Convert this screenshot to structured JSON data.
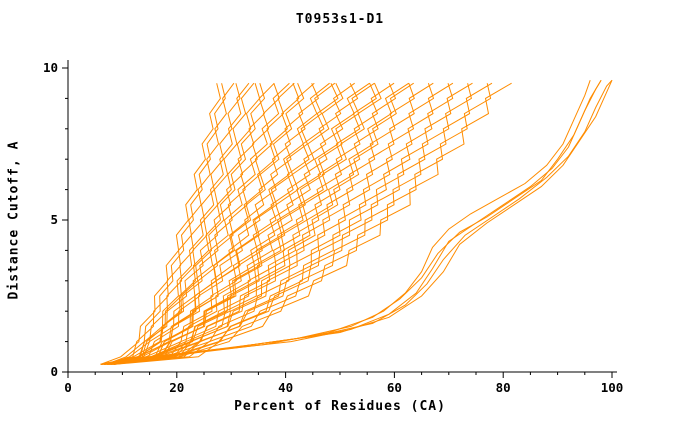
{
  "chart_data": {
    "type": "line",
    "title": "T0953s1-D1",
    "xlabel": "Percent of Residues (CA)",
    "ylabel": "Distance Cutoff, A",
    "xlim": [
      0,
      100
    ],
    "ylim": [
      0,
      10
    ],
    "x_ticks": [
      0,
      20,
      40,
      60,
      80,
      100
    ],
    "x_minor_ticks_step": 5,
    "y_ticks": [
      0,
      5,
      10
    ],
    "y_minor_ticks_step": 1,
    "line_color": "#ff8c00",
    "axis_color": "#000000",
    "background": "#ffffff",
    "legend": "none",
    "grid": false,
    "band_series": [
      [
        6,
        28
      ],
      [
        6.6,
        29.8
      ],
      [
        7.2,
        31.6
      ],
      [
        7.8,
        33.4
      ],
      [
        8.4,
        35.2
      ],
      [
        6,
        37
      ],
      [
        6.6,
        38.8
      ],
      [
        7.2,
        40.6
      ],
      [
        7.8,
        42.4
      ],
      [
        8.4,
        44.2
      ],
      [
        6,
        46
      ],
      [
        6.6,
        47.8
      ],
      [
        7.2,
        49.6
      ],
      [
        7.8,
        51.4
      ],
      [
        8.4,
        53.2
      ],
      [
        6,
        55
      ],
      [
        6.6,
        56.8
      ],
      [
        7.2,
        58.6
      ],
      [
        7.8,
        60.4
      ],
      [
        8.4,
        62.2
      ],
      [
        6,
        64
      ],
      [
        6.6,
        65.8
      ],
      [
        7.2,
        67.6
      ],
      [
        7.8,
        69.4
      ],
      [
        8.4,
        71.2
      ],
      [
        6,
        73
      ],
      [
        6.6,
        74.8
      ],
      [
        7.2,
        76.6
      ],
      [
        7.8,
        78.4
      ],
      [
        8.4,
        80.2
      ],
      [
        7,
        28.9
      ],
      [
        7.6,
        32.5
      ],
      [
        8.2,
        36.1
      ],
      [
        6.3,
        39.7
      ],
      [
        6.9,
        43.3
      ],
      [
        7.5,
        46.9
      ],
      [
        8.1,
        50.5
      ],
      [
        6.2,
        54.1
      ],
      [
        6.8,
        57.7
      ],
      [
        7.4,
        61.3
      ]
    ],
    "outlier_series": [
      [
        [
          7,
          0.3
        ],
        [
          18,
          0.5
        ],
        [
          30,
          0.8
        ],
        [
          42,
          1.1
        ],
        [
          52,
          1.5
        ],
        [
          58,
          2.0
        ],
        [
          62,
          2.6
        ],
        [
          65,
          3.3
        ],
        [
          67,
          4.1
        ],
        [
          70,
          4.7
        ],
        [
          74,
          5.2
        ],
        [
          79,
          5.7
        ],
        [
          84,
          6.2
        ],
        [
          88,
          6.8
        ],
        [
          91,
          7.5
        ],
        [
          93,
          8.3
        ],
        [
          95,
          9.1
        ],
        [
          96,
          9.6
        ]
      ],
      [
        [
          8,
          0.3
        ],
        [
          22,
          0.6
        ],
        [
          36,
          0.9
        ],
        [
          48,
          1.3
        ],
        [
          56,
          1.8
        ],
        [
          61,
          2.4
        ],
        [
          65,
          3.1
        ],
        [
          68,
          3.9
        ],
        [
          72,
          4.6
        ],
        [
          77,
          5.1
        ],
        [
          82,
          5.7
        ],
        [
          87,
          6.3
        ],
        [
          90,
          7.0
        ],
        [
          93,
          7.8
        ],
        [
          95,
          8.6
        ],
        [
          97,
          9.3
        ],
        [
          98,
          9.6
        ]
      ],
      [
        [
          9,
          0.35
        ],
        [
          26,
          0.7
        ],
        [
          41,
          1.0
        ],
        [
          52,
          1.4
        ],
        [
          59,
          1.9
        ],
        [
          64,
          2.6
        ],
        [
          67,
          3.4
        ],
        [
          70,
          4.3
        ],
        [
          75,
          4.9
        ],
        [
          80,
          5.5
        ],
        [
          85,
          6.1
        ],
        [
          89,
          6.7
        ],
        [
          92,
          7.4
        ],
        [
          94,
          8.2
        ],
        [
          96,
          9.0
        ],
        [
          98,
          9.6
        ]
      ],
      [
        [
          10,
          0.4
        ],
        [
          30,
          0.8
        ],
        [
          46,
          1.2
        ],
        [
          56,
          1.6
        ],
        [
          62,
          2.2
        ],
        [
          66,
          2.9
        ],
        [
          69,
          3.7
        ],
        [
          73,
          4.5
        ],
        [
          78,
          5.1
        ],
        [
          83,
          5.7
        ],
        [
          88,
          6.4
        ],
        [
          92,
          7.1
        ],
        [
          95,
          7.9
        ],
        [
          97,
          8.7
        ],
        [
          99,
          9.4
        ],
        [
          100,
          9.6
        ]
      ],
      [
        [
          12,
          0.4
        ],
        [
          34,
          0.9
        ],
        [
          50,
          1.3
        ],
        [
          59,
          1.8
        ],
        [
          65,
          2.5
        ],
        [
          69,
          3.3
        ],
        [
          72,
          4.2
        ],
        [
          77,
          4.9
        ],
        [
          82,
          5.5
        ],
        [
          87,
          6.1
        ],
        [
          91,
          6.8
        ],
        [
          94,
          7.6
        ],
        [
          97,
          8.4
        ],
        [
          99,
          9.2
        ],
        [
          100,
          9.6
        ]
      ]
    ]
  }
}
